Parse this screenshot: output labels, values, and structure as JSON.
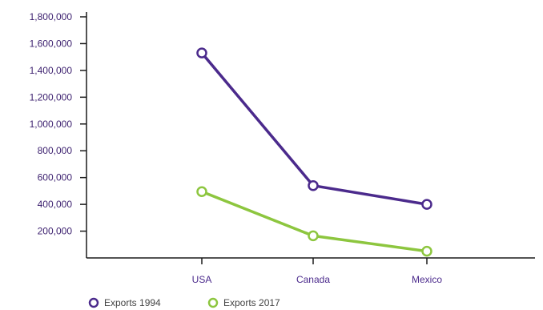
{
  "chart_data": {
    "type": "line",
    "categories": [
      "USA",
      "Canada",
      "Mexico"
    ],
    "series": [
      {
        "name": "Exports 1994",
        "values": [
          1530000,
          540000,
          400000
        ],
        "color": "#4b2a8c"
      },
      {
        "name": "Exports 2017",
        "values": [
          495000,
          165000,
          50000
        ],
        "color": "#8dc63f"
      }
    ],
    "y_ticks": [
      "1,800,000",
      "1,600,000",
      "1,400,000",
      "1,200,000",
      "1,000,000",
      "800,000",
      "600,000",
      "400,000",
      "200,000"
    ],
    "y_tick_values": [
      1800000,
      1600000,
      1400000,
      1200000,
      1000000,
      800000,
      600000,
      400000,
      200000
    ],
    "ylim": [
      0,
      1800000
    ],
    "grid": false,
    "legend_position": "bottom-left",
    "title": "",
    "xlabel": "",
    "ylabel": "",
    "colors": {
      "axis": "#1a1a1a",
      "tick_text": "#3b1f6e",
      "category_text": "#4b2a8c",
      "legend_text": "#444444"
    }
  }
}
